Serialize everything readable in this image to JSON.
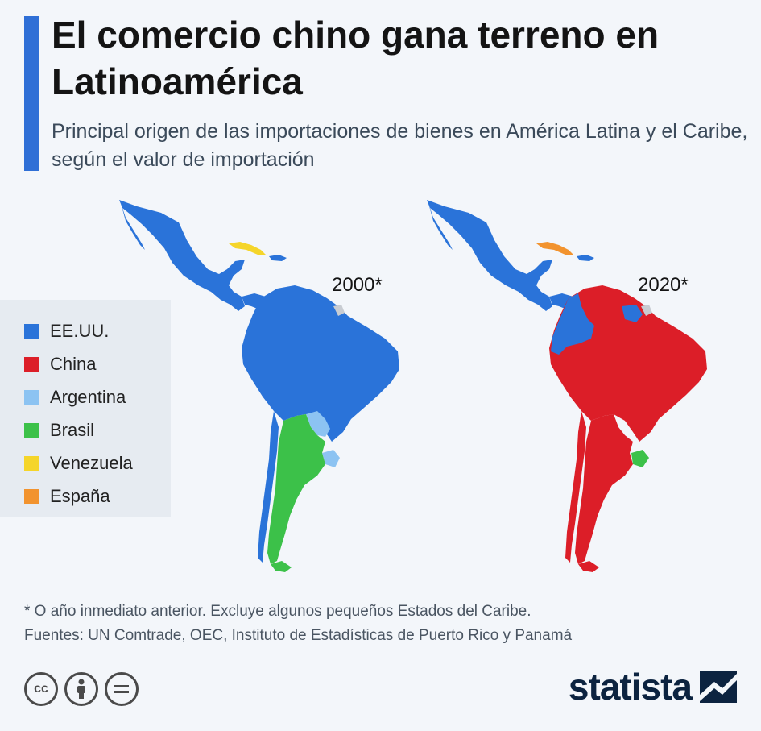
{
  "header": {
    "title": "El comercio chino gana terreno en Latinoamérica",
    "subtitle": "Principal origen de las importaciones de bienes en América Latina y el Caribe, según el valor de importación"
  },
  "maps": [
    {
      "year_label": "2000*"
    },
    {
      "year_label": "2020*"
    }
  ],
  "legend": [
    {
      "label": "EE.UU.",
      "color": "#2a73d9"
    },
    {
      "label": "China",
      "color": "#dc1e28"
    },
    {
      "label": "Argentina",
      "color": "#8cc3f2"
    },
    {
      "label": "Brasil",
      "color": "#3cc149"
    },
    {
      "label": "Venezuela",
      "color": "#f5d52a"
    },
    {
      "label": "España",
      "color": "#f2932e"
    }
  ],
  "footnote": {
    "note": "* O año inmediato anterior. Excluye algunos pequeños Estados del Caribe.",
    "sources": "Fuentes: UN Comtrade, OEC, Instituto de Estadísticas de Puerto Rico y Panamá"
  },
  "branding": {
    "brand_name": "statista",
    "license_icons": [
      "cc-icon",
      "by-icon",
      "nd-icon"
    ]
  },
  "colors": {
    "accent": "#2f6fd6",
    "usa": "#2a73d9",
    "china": "#dc1e28",
    "argentina": "#8cc3f2",
    "brasil": "#3cc149",
    "venezuela": "#f5d52a",
    "espana": "#f2932e",
    "no_data": "#c8ccd2"
  }
}
